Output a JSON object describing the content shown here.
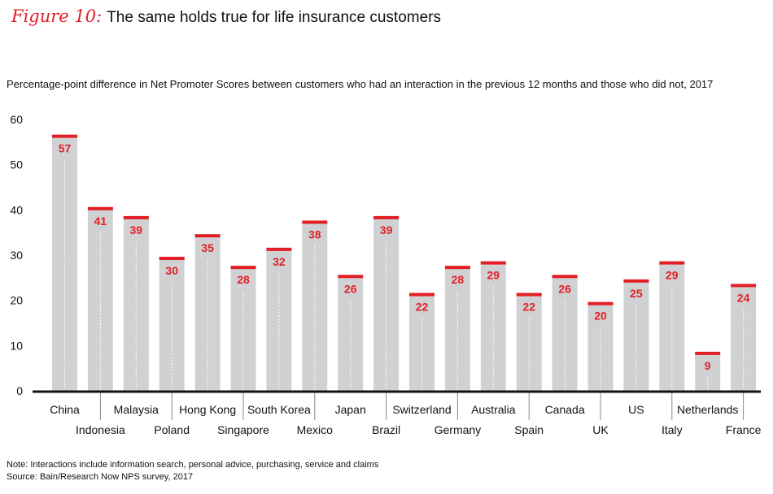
{
  "header": {
    "figure_label": "Figure 10:",
    "title": "The same holds true for life insurance customers",
    "subtitle": "Percentage-point difference in Net Promoter Scores between customers who had an interaction in the previous 12 months and those who did not, 2017"
  },
  "footer": {
    "note": "Note: Interactions include information search, personal advice, purchasing, service and claims",
    "source": "Source: Bain/Research Now NPS survey, 2017"
  },
  "chart_data": {
    "type": "bar",
    "categories": [
      "China",
      "Indonesia",
      "Malaysia",
      "Poland",
      "Hong Kong",
      "Singapore",
      "South Korea",
      "Mexico",
      "Japan",
      "Brazil",
      "Switzerland",
      "Germany",
      "Australia",
      "Spain",
      "Canada",
      "UK",
      "US",
      "Italy",
      "Netherlands",
      "France"
    ],
    "values": [
      57,
      41,
      39,
      30,
      35,
      28,
      32,
      38,
      26,
      39,
      22,
      28,
      29,
      22,
      26,
      20,
      25,
      29,
      9,
      24
    ],
    "ylim": [
      0,
      60
    ],
    "yticks": [
      0,
      10,
      20,
      30,
      40,
      50,
      60
    ],
    "grid": false,
    "colors": {
      "bar": "#d0d1d3",
      "cap": "#e31f26",
      "label": "#e31f26",
      "axis": "#111111"
    }
  }
}
